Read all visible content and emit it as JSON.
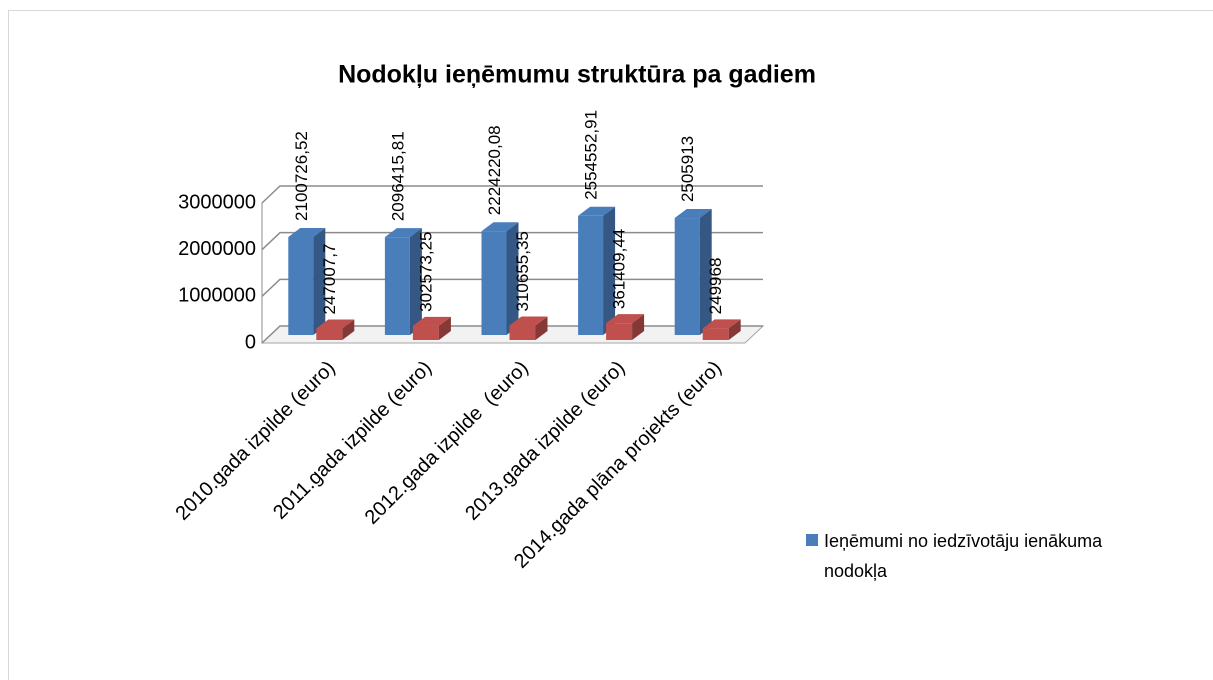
{
  "chart_data": {
    "type": "bar3d",
    "title": "Nodokļu ieņēmumu struktūra pa gadiem",
    "categories": [
      "2010.gada izpilde (euro)",
      "2011.gada izpilde (euro)",
      "2012.gada izpilde  (euro)",
      "2013.gada izpilde (euro)",
      "2014.gada plāna projekts (euro)"
    ],
    "series": [
      {
        "name": "Ieņēmumi no iedzīvotāju ienākuma nodokļa",
        "color": "#4a7ebb",
        "values": [
          2100726.52,
          2096415.81,
          2224220.08,
          2554552.91,
          2505913
        ],
        "value_labels": [
          "2100726,52",
          "2096415,81",
          "2224220,08",
          "2554552,91",
          "2505913"
        ]
      },
      {
        "color": "#c0504d",
        "values": [
          247007.7,
          302573.25,
          310655.35,
          361409.44,
          249968
        ],
        "value_labels": [
          "247007,7",
          "302573,25",
          "310655,35",
          "361409,44",
          "249968"
        ]
      }
    ],
    "ylim": [
      0,
      3000000
    ],
    "yticks": [
      0,
      1000000,
      2000000,
      3000000
    ],
    "grid": true,
    "legend": "right"
  }
}
